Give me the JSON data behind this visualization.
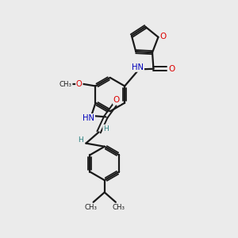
{
  "background_color": "#ebebeb",
  "bond_color": "#1a1a1a",
  "atom_colors": {
    "O": "#dd0000",
    "N": "#0000bb",
    "C": "#1a1a1a",
    "H": "#2a8080"
  },
  "figsize": [
    3.0,
    3.0
  ],
  "dpi": 100,
  "xlim": [
    0,
    10
  ],
  "ylim": [
    0,
    10
  ]
}
